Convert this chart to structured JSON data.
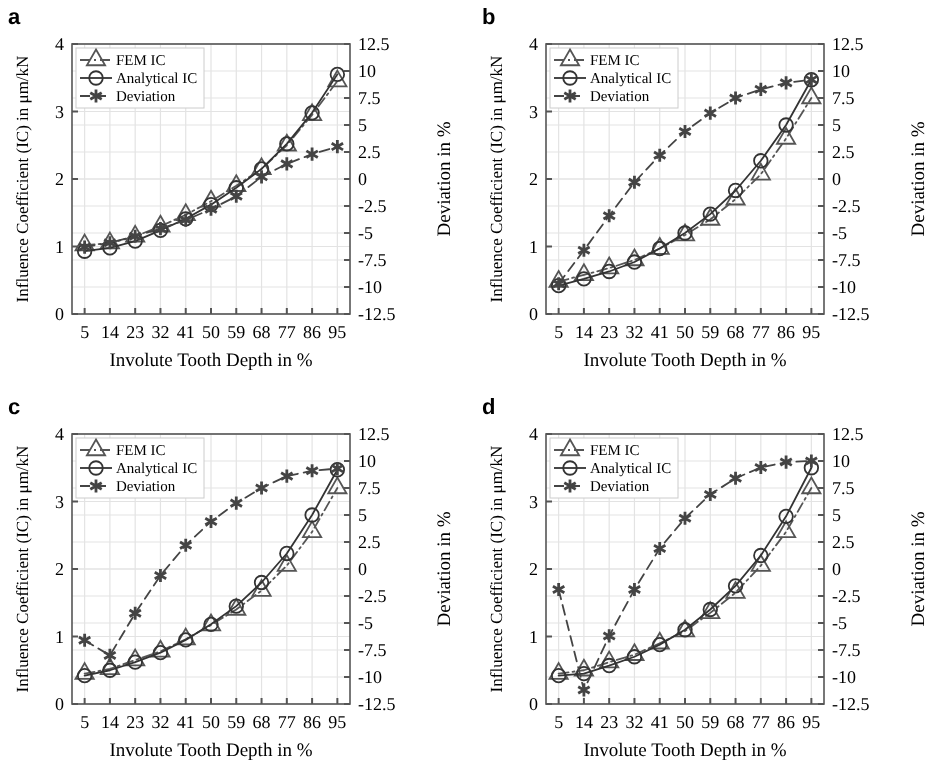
{
  "chart_data": [
    {
      "type": "line",
      "title": "a",
      "categories": [
        "5",
        "14",
        "23",
        "32",
        "41",
        "50",
        "59",
        "68",
        "77",
        "86",
        "95"
      ],
      "xlabel": "Involute Tooth Depth in %",
      "ylabel": "Influence Coefficient (IC) in μm/kN",
      "y2label": "Deviation in %",
      "ylim": [
        0,
        4
      ],
      "yticks": [
        0,
        1,
        2,
        3,
        4
      ],
      "y2lim": [
        -12.5,
        12.5
      ],
      "y2ticks": [
        -12.5,
        -10,
        -7.5,
        -5,
        -2.5,
        0,
        2.5,
        5,
        7.5,
        10,
        12.5
      ],
      "grid": true,
      "legend": "top left",
      "series": [
        {
          "name": "FEM IC",
          "color": "#555555",
          "marker": "triangle",
          "line_style": "dashdot",
          "values": [
            1.02,
            1.05,
            1.15,
            1.3,
            1.47,
            1.67,
            1.9,
            2.15,
            2.5,
            2.95,
            3.45
          ]
        },
        {
          "name": "Analytical IC",
          "color": "#333333",
          "marker": "circle",
          "line_style": "solid",
          "values": [
            0.93,
            0.98,
            1.08,
            1.24,
            1.41,
            1.62,
            1.87,
            2.15,
            2.52,
            2.98,
            3.55
          ]
        },
        {
          "name": "Deviation",
          "color": "#444444",
          "marker": "cross",
          "line_style": "dashed",
          "axis": "y2",
          "values": [
            -6.3,
            -5.9,
            -5.3,
            -4.6,
            -3.8,
            -2.8,
            -1.6,
            0.2,
            1.4,
            2.3,
            3.0
          ]
        }
      ]
    },
    {
      "type": "line",
      "title": "b",
      "categories": [
        "5",
        "14",
        "23",
        "32",
        "41",
        "50",
        "59",
        "68",
        "77",
        "86",
        "95"
      ],
      "xlabel": "Involute Tooth Depth in %",
      "ylabel": "Influence Coefficient (IC) in μm/kN",
      "y2label": "Deviation in %",
      "ylim": [
        0,
        4
      ],
      "yticks": [
        0,
        1,
        2,
        3,
        4
      ],
      "y2lim": [
        -12.5,
        12.5
      ],
      "y2ticks": [
        -12.5,
        -10,
        -7.5,
        -5,
        -2.5,
        0,
        2.5,
        5,
        7.5,
        10,
        12.5
      ],
      "grid": true,
      "legend": "top left",
      "series": [
        {
          "name": "FEM IC",
          "color": "#555555",
          "marker": "triangle",
          "line_style": "dashdot",
          "values": [
            0.48,
            0.58,
            0.68,
            0.8,
            0.97,
            1.17,
            1.4,
            1.7,
            2.07,
            2.6,
            3.2
          ]
        },
        {
          "name": "Analytical IC",
          "color": "#333333",
          "marker": "circle",
          "line_style": "solid",
          "values": [
            0.42,
            0.52,
            0.63,
            0.77,
            0.97,
            1.2,
            1.48,
            1.83,
            2.27,
            2.8,
            3.47
          ]
        },
        {
          "name": "Deviation",
          "color": "#444444",
          "marker": "cross",
          "line_style": "dashed",
          "axis": "y2",
          "values": [
            -9.7,
            -6.6,
            -3.4,
            -0.3,
            2.2,
            4.4,
            6.1,
            7.5,
            8.3,
            8.9,
            9.2
          ]
        }
      ]
    },
    {
      "type": "line",
      "title": "c",
      "categories": [
        "5",
        "14",
        "23",
        "32",
        "41",
        "50",
        "59",
        "68",
        "77",
        "86",
        "95"
      ],
      "xlabel": "Involute Tooth Depth in %",
      "ylabel": "Influence Coefficient (IC) in μm/kN",
      "y2label": "Deviation in %",
      "ylim": [
        0,
        4
      ],
      "yticks": [
        0,
        1,
        2,
        3,
        4
      ],
      "y2lim": [
        -12.5,
        12.5
      ],
      "y2ticks": [
        -12.5,
        -10,
        -7.5,
        -5,
        -2.5,
        0,
        2.5,
        5,
        7.5,
        10,
        12.5
      ],
      "grid": true,
      "legend": "top left",
      "series": [
        {
          "name": "FEM IC",
          "color": "#555555",
          "marker": "triangle",
          "line_style": "dashdot",
          "values": [
            0.45,
            0.52,
            0.65,
            0.78,
            0.96,
            1.17,
            1.4,
            1.68,
            2.05,
            2.55,
            3.2
          ]
        },
        {
          "name": "Analytical IC",
          "color": "#333333",
          "marker": "circle",
          "line_style": "solid",
          "values": [
            0.42,
            0.5,
            0.62,
            0.76,
            0.95,
            1.18,
            1.45,
            1.8,
            2.23,
            2.8,
            3.47
          ]
        },
        {
          "name": "Deviation",
          "color": "#444444",
          "marker": "cross",
          "line_style": "dashed",
          "axis": "y2",
          "values": [
            -6.6,
            -8.0,
            -4.1,
            -0.6,
            2.2,
            4.4,
            6.1,
            7.5,
            8.6,
            9.1,
            9.3
          ]
        }
      ]
    },
    {
      "type": "line",
      "title": "d",
      "categories": [
        "5",
        "14",
        "23",
        "32",
        "41",
        "50",
        "59",
        "68",
        "77",
        "86",
        "95"
      ],
      "xlabel": "Involute Tooth Depth in %",
      "ylabel": "Influence Coefficient (IC) in μm/kN",
      "y2label": "Deviation in %",
      "ylim": [
        0,
        4
      ],
      "yticks": [
        0,
        1,
        2,
        3,
        4
      ],
      "y2lim": [
        -12.5,
        12.5
      ],
      "y2ticks": [
        -12.5,
        -10,
        -7.5,
        -5,
        -2.5,
        0,
        2.5,
        5,
        7.5,
        10,
        12.5
      ],
      "grid": true,
      "legend": "top left",
      "series": [
        {
          "name": "FEM IC",
          "color": "#555555",
          "marker": "triangle",
          "line_style": "dashdot",
          "values": [
            0.45,
            0.5,
            0.62,
            0.73,
            0.9,
            1.08,
            1.35,
            1.65,
            2.05,
            2.55,
            3.2
          ]
        },
        {
          "name": "Analytical IC",
          "color": "#333333",
          "marker": "circle",
          "line_style": "solid",
          "values": [
            0.42,
            0.45,
            0.57,
            0.7,
            0.88,
            1.1,
            1.4,
            1.75,
            2.2,
            2.78,
            3.5
          ]
        },
        {
          "name": "Deviation",
          "color": "#444444",
          "marker": "cross",
          "line_style": "dashed",
          "axis": "y2",
          "values": [
            -1.9,
            -11.2,
            -6.2,
            -1.9,
            1.9,
            4.7,
            6.9,
            8.4,
            9.4,
            9.9,
            10.0
          ]
        }
      ]
    }
  ]
}
